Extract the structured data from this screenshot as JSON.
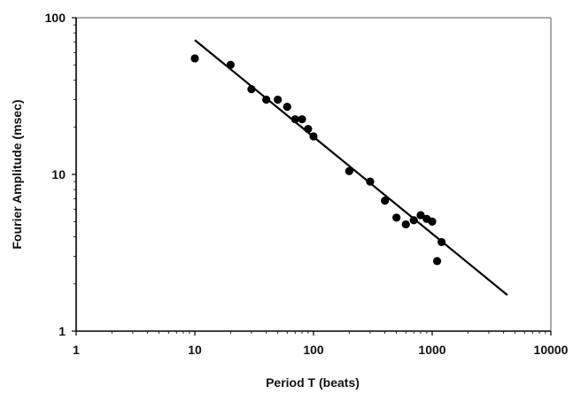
{
  "chart_data": {
    "type": "scatter",
    "title": "",
    "xlabel": "Period T (beats)",
    "ylabel": "Fourier Amplitude (msec)",
    "x_scale": "log",
    "y_scale": "log",
    "xlim": [
      1,
      10000
    ],
    "ylim": [
      1,
      100
    ],
    "x_ticks": [
      1,
      10,
      100,
      1000,
      10000
    ],
    "y_ticks": [
      1,
      10,
      100
    ],
    "x_tick_labels": [
      "1",
      "10",
      "100",
      "1000",
      "10000"
    ],
    "y_tick_labels": [
      "1",
      "10",
      "100"
    ],
    "grid": false,
    "legend": "none",
    "series": [
      {
        "kind": "points",
        "color": "#000000",
        "points": [
          {
            "x": 10,
            "y": 55
          },
          {
            "x": 20,
            "y": 50
          },
          {
            "x": 30,
            "y": 35
          },
          {
            "x": 40,
            "y": 30
          },
          {
            "x": 50,
            "y": 30
          },
          {
            "x": 60,
            "y": 27
          },
          {
            "x": 70,
            "y": 22.5
          },
          {
            "x": 80,
            "y": 22.5
          },
          {
            "x": 90,
            "y": 19.5
          },
          {
            "x": 100,
            "y": 17.5
          },
          {
            "x": 200,
            "y": 10.5
          },
          {
            "x": 300,
            "y": 9
          },
          {
            "x": 400,
            "y": 6.8
          },
          {
            "x": 500,
            "y": 5.3
          },
          {
            "x": 600,
            "y": 4.8
          },
          {
            "x": 700,
            "y": 5.1
          },
          {
            "x": 800,
            "y": 5.5
          },
          {
            "x": 900,
            "y": 5.2
          },
          {
            "x": 1000,
            "y": 5
          },
          {
            "x": 1100,
            "y": 2.8
          },
          {
            "x": 1200,
            "y": 3.7
          }
        ]
      },
      {
        "kind": "fit-line",
        "color": "#000000",
        "points": [
          {
            "x": 10,
            "y": 72
          },
          {
            "x": 4300,
            "y": 1.7
          }
        ]
      }
    ]
  }
}
